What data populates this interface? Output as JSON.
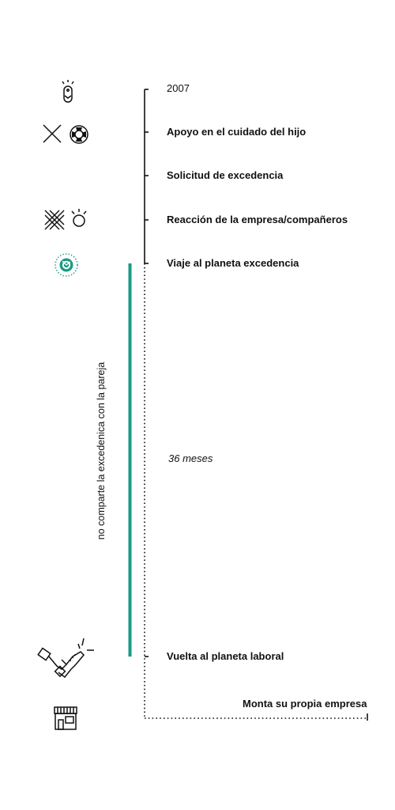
{
  "timeline": {
    "start_year": "2007",
    "events": [
      {
        "label": "Apoyo en el cuidado del hijo"
      },
      {
        "label": "Solicitud de excedencia"
      },
      {
        "label": "Reacción de la empresa/compañeros"
      },
      {
        "label": "Viaje al planeta excedencia"
      },
      {
        "label": "Vuelta al planeta laboral"
      }
    ],
    "duration_label": "36 meses",
    "end_label": "Monta su propia empresa"
  },
  "side_label": "no comparte la excedenica con la pareja",
  "colors": {
    "accent": "#1a9a84",
    "ink": "#111111"
  },
  "icons": {
    "row0": [
      "baby-icon"
    ],
    "row1": [
      "cross-icon",
      "lifebuoy-icon"
    ],
    "row3": [
      "crosshatch-icon",
      "lightbulb-icon"
    ],
    "row4": [
      "planet-icon"
    ],
    "row5": [
      "handshake-icon"
    ],
    "row6": [
      "shop-icon"
    ]
  }
}
